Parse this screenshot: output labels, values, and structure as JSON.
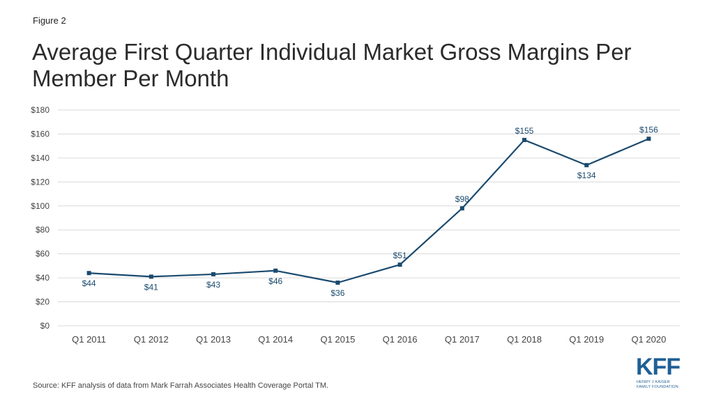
{
  "figure_label": "Figure 2",
  "title_line1": "Average First Quarter Individual Market Gross Margins Per",
  "title_line2": "Member Per Month",
  "source": "Source: KFF analysis of data from Mark Farrah Associates Health  Coverage Portal TM.",
  "logo": {
    "main": "KFF",
    "sub_line1": "HENRY J KAISER",
    "sub_line2": "FAMILY FOUNDATION"
  },
  "colors": {
    "line": "#1a4a6e",
    "grid": "#d9d9d9",
    "axis_text": "#444444",
    "brand": "#1f5f95"
  },
  "chart_data": {
    "type": "line",
    "categories": [
      "Q1 2011",
      "Q1 2012",
      "Q1 2013",
      "Q1 2014",
      "Q1 2015",
      "Q1 2016",
      "Q1 2017",
      "Q1 2018",
      "Q1 2019",
      "Q1 2020"
    ],
    "series": [
      {
        "values": [
          44,
          41,
          43,
          46,
          36,
          51,
          98,
          155,
          134,
          156
        ],
        "labels": [
          "$44",
          "$41",
          "$43",
          "$46",
          "$36",
          "$51",
          "$98",
          "$155",
          "$134",
          "$156"
        ],
        "label_positions": [
          "below",
          "below",
          "below",
          "below",
          "below",
          "above",
          "above",
          "above",
          "below",
          "above"
        ]
      }
    ],
    "yticks": [
      0,
      20,
      40,
      60,
      80,
      100,
      120,
      140,
      160,
      180
    ],
    "ytick_labels": [
      "$0",
      "$20",
      "$40",
      "$60",
      "$80",
      "$100",
      "$120",
      "$140",
      "$160",
      "$180"
    ],
    "ylim": [
      0,
      180
    ],
    "grid": true,
    "xlabel": "",
    "ylabel": ""
  }
}
